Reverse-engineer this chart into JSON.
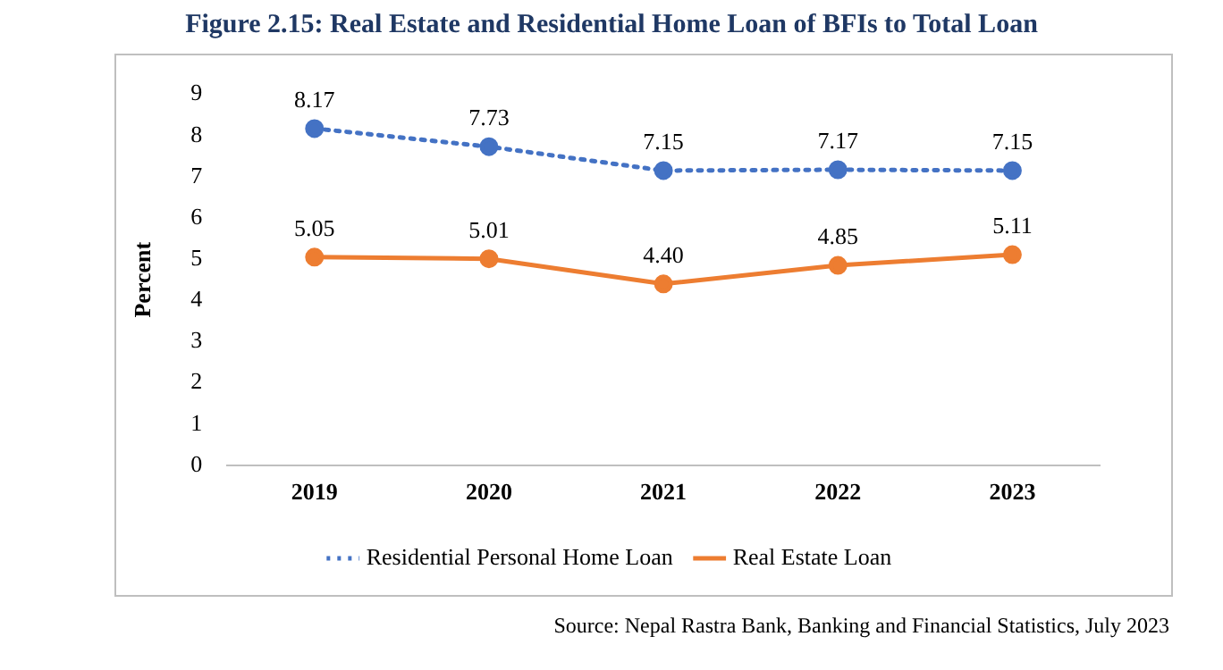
{
  "chart_data": {
    "type": "line",
    "title": "Figure 2.15: Real Estate and Residential Home Loan of BFIs to Total Loan",
    "ylabel": "Percent",
    "categories": [
      "2019",
      "2020",
      "2021",
      "2022",
      "2023"
    ],
    "series": [
      {
        "name": "Residential Personal Home Loan",
        "color": "#4472c4",
        "line_style": "dotted",
        "values": [
          8.17,
          7.73,
          7.15,
          7.17,
          7.15
        ],
        "value_labels": [
          "8.17",
          "7.73",
          "7.15",
          "7.17",
          "7.15"
        ]
      },
      {
        "name": "Real Estate Loan",
        "color": "#ed7d31",
        "line_style": "solid",
        "values": [
          5.05,
          5.01,
          4.4,
          4.85,
          5.11
        ],
        "value_labels": [
          "5.05",
          "5.01",
          "4.40",
          "4.85",
          "5.11"
        ]
      }
    ],
    "ylim": [
      0,
      9
    ],
    "yticks": [
      0,
      1,
      2,
      3,
      4,
      5,
      6,
      7,
      8,
      9
    ],
    "grid": false,
    "legend": "bottom",
    "marker": "circle",
    "annotations": [
      "Source: Nepal Rastra Bank, Banking and Financial Statistics, July 2023"
    ]
  }
}
